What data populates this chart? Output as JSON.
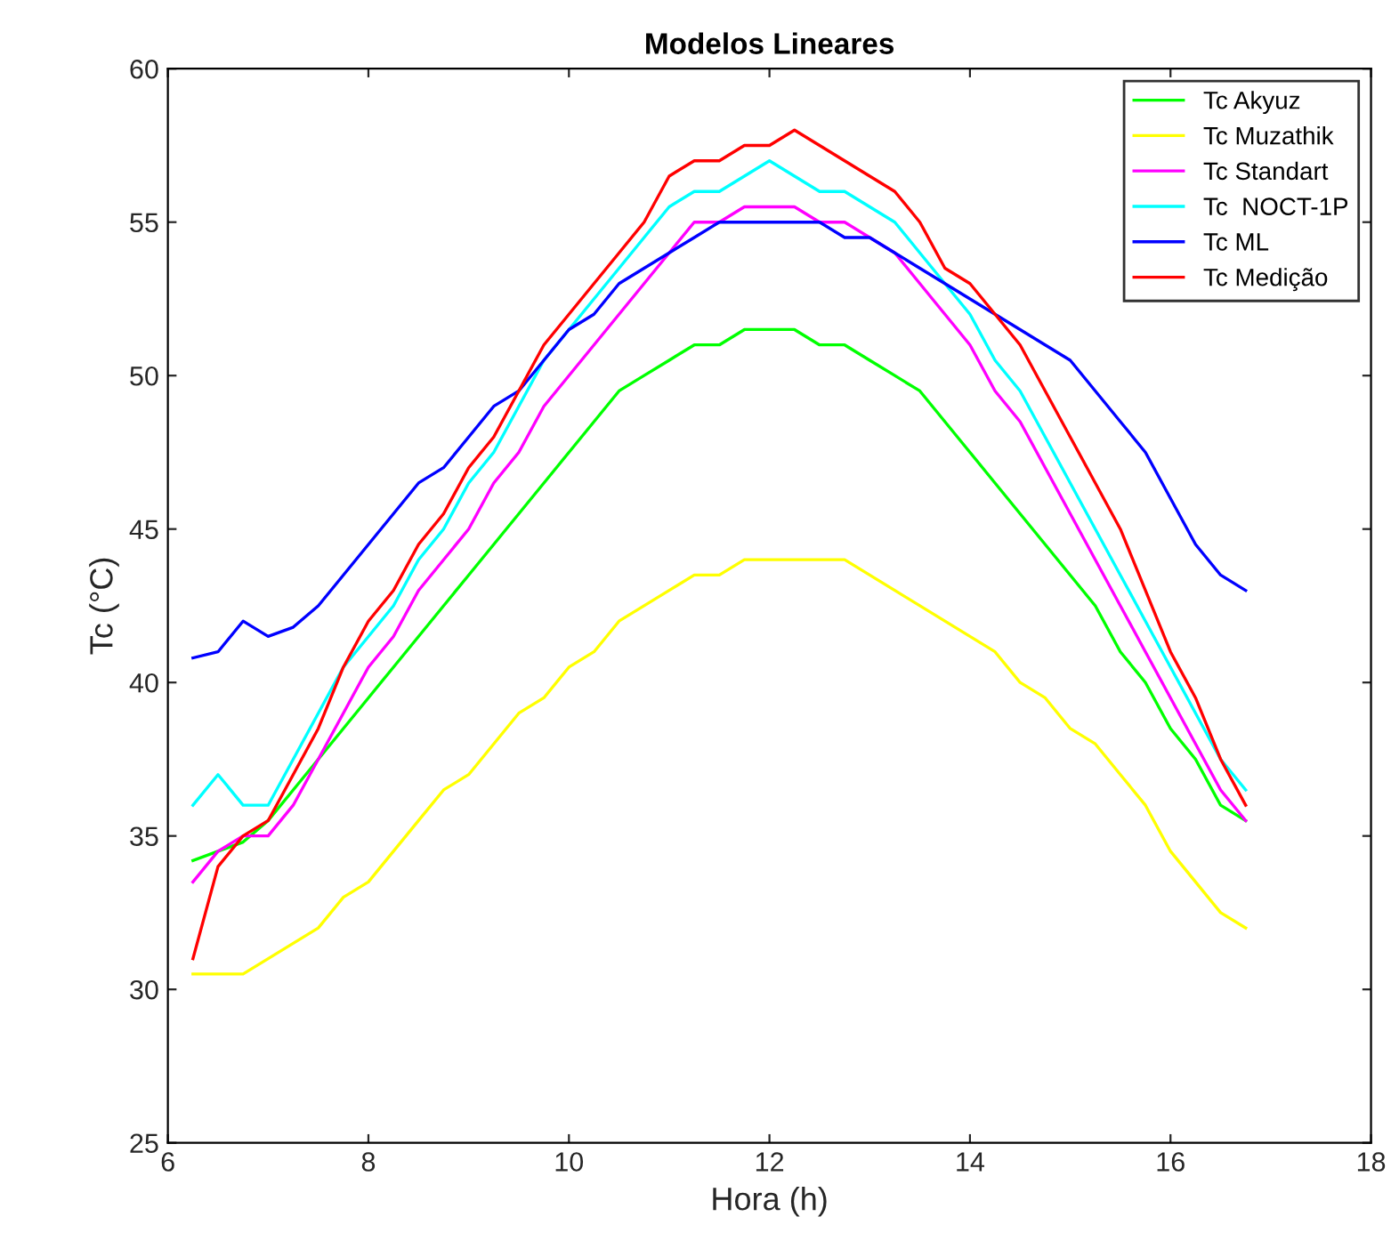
{
  "chart_data": {
    "type": "line",
    "title": "Modelos Lineares",
    "xlabel": "Hora (h)",
    "ylabel": "Tc (°C)",
    "x": [
      6.25,
      6.5,
      6.75,
      7.0,
      7.25,
      7.5,
      7.75,
      8.0,
      8.25,
      8.5,
      8.75,
      9.0,
      9.25,
      9.5,
      9.75,
      10.0,
      10.25,
      10.5,
      10.75,
      11.0,
      11.25,
      11.5,
      11.75,
      12.0,
      12.25,
      12.5,
      12.75,
      13.0,
      13.25,
      13.5,
      13.75,
      14.0,
      14.25,
      14.5,
      14.75,
      15.0,
      15.25,
      15.5,
      15.75,
      16.0,
      16.25,
      16.5,
      16.75
    ],
    "xlim": [
      6,
      18
    ],
    "xticks": [
      6,
      8,
      10,
      12,
      14,
      16,
      18
    ],
    "ylim": [
      25,
      60
    ],
    "yticks": [
      25,
      30,
      35,
      40,
      45,
      50,
      55,
      60
    ],
    "grid": false,
    "legend": "top right",
    "line_style": "solid",
    "marker": "none",
    "series": [
      {
        "name": "Tc Akyuz",
        "color": "#00ff00",
        "values": [
          34.2,
          34.5,
          34.8,
          35.5,
          36.5,
          37.5,
          38.5,
          39.5,
          40.5,
          41.5,
          42.5,
          43.5,
          44.5,
          45.5,
          46.5,
          47.5,
          48.5,
          49.5,
          50,
          50.5,
          51,
          51,
          51.5,
          51.5,
          51.5,
          51,
          51,
          50.5,
          50,
          49.5,
          48.5,
          47.5,
          46.5,
          45.5,
          44.5,
          43.5,
          42.5,
          41,
          40,
          38.5,
          37.5,
          36,
          35.5
        ]
      },
      {
        "name": "Tc Muzathik",
        "color": "#ffff00",
        "values": [
          30.5,
          30.5,
          30.5,
          31,
          31.5,
          32,
          33,
          33.5,
          34.5,
          35.5,
          36.5,
          37,
          38,
          39,
          39.5,
          40.5,
          41,
          42,
          42.5,
          43,
          43.5,
          43.5,
          44,
          44,
          44,
          44,
          44,
          43.5,
          43,
          42.5,
          42,
          41.5,
          41,
          40,
          39.5,
          38.5,
          38,
          37,
          36,
          34.5,
          33.5,
          32.5,
          32
        ]
      },
      {
        "name": "Tc Standart",
        "color": "#ff00ff",
        "values": [
          33.5,
          34.5,
          35,
          35,
          36,
          37.5,
          39,
          40.5,
          41.5,
          43,
          44,
          45,
          46.5,
          47.5,
          49,
          50,
          51,
          52,
          53,
          54,
          55,
          55,
          55.5,
          55.5,
          55.5,
          55,
          55,
          54.5,
          54,
          53,
          52,
          51,
          49.5,
          48.5,
          47,
          45.5,
          44,
          42.5,
          41,
          39.5,
          38,
          36.5,
          35.5
        ]
      },
      {
        "name": "Tc  NOCT-1P",
        "color": "#00ffff",
        "values": [
          36,
          37,
          36,
          36,
          37.5,
          39,
          40.5,
          41.5,
          42.5,
          44,
          45,
          46.5,
          47.5,
          49,
          50.5,
          51.5,
          52.5,
          53.5,
          54.5,
          55.5,
          56,
          56,
          56.5,
          57,
          56.5,
          56,
          56,
          55.5,
          55,
          54,
          53,
          52,
          50.5,
          49.5,
          48,
          46.5,
          45,
          43.5,
          42,
          40.5,
          39,
          37.5,
          36.5
        ]
      },
      {
        "name": "Tc ML",
        "color": "#0000ff",
        "values": [
          40.8,
          41,
          42,
          41.5,
          41.8,
          42.5,
          43.5,
          44.5,
          45.5,
          46.5,
          47,
          48,
          49,
          49.5,
          50.5,
          51.5,
          52,
          53,
          53.5,
          54,
          54.5,
          55,
          55,
          55,
          55,
          55,
          54.5,
          54.5,
          54,
          53.5,
          53,
          52.5,
          52,
          51.5,
          51,
          50.5,
          49.5,
          48.5,
          47.5,
          46,
          44.5,
          43.5,
          43
        ]
      },
      {
        "name": "Tc Medição",
        "color": "#ff0000",
        "values": [
          31,
          34,
          35,
          35.5,
          37,
          38.5,
          40.5,
          42,
          43,
          44.5,
          45.5,
          47,
          48,
          49.5,
          51,
          52,
          53,
          54,
          55,
          56.5,
          57,
          57,
          57.5,
          57.5,
          58,
          57.5,
          57,
          56.5,
          56,
          55,
          53.5,
          53,
          52,
          51,
          49.5,
          48,
          46.5,
          45,
          43,
          41,
          39.5,
          37.5,
          36
        ]
      }
    ]
  }
}
